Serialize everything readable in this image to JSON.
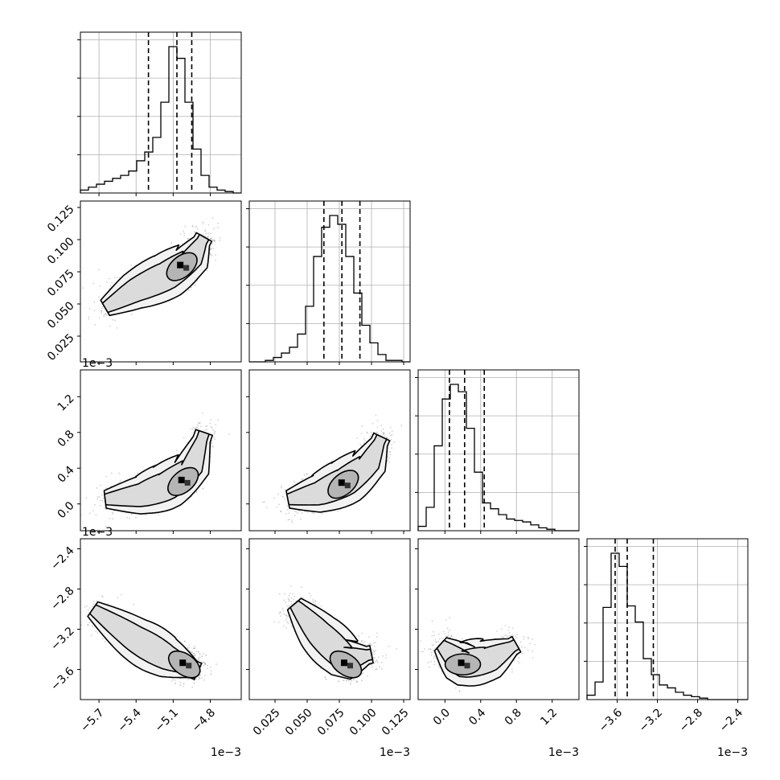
{
  "chart_data": {
    "type": "corner",
    "parameters": 4,
    "axes": [
      {
        "range": [
          -5.85,
          -4.55
        ],
        "ticks": [
          -5.7,
          -5.4,
          -5.1,
          -4.8
        ],
        "tick_labels": [
          "−5.7",
          "−5.4",
          "−5.1",
          "−4.8"
        ],
        "scale_label": "1e−3"
      },
      {
        "range": [
          0.005,
          0.13
        ],
        "ticks": [
          0.025,
          0.05,
          0.075,
          0.1,
          0.125
        ],
        "tick_labels": [
          "0.025",
          "0.050",
          "0.075",
          "0.100",
          "0.125"
        ],
        "scale_label": "1e−3"
      },
      {
        "range": [
          -0.3,
          1.5
        ],
        "ticks": [
          0.0,
          0.4,
          0.8,
          1.2
        ],
        "tick_labels": [
          "0.0",
          "0.4",
          "0.8",
          "1.2"
        ],
        "scale_label": "1e−3"
      },
      {
        "range": [
          -3.9,
          -2.3
        ],
        "ticks": [
          -3.6,
          -3.2,
          -2.8,
          -2.4
        ],
        "tick_labels": [
          "−3.6",
          "−3.2",
          "−2.8",
          "−2.4"
        ],
        "scale_label": "1e−3"
      }
    ],
    "histograms": [
      {
        "quantiles": [
          -5.3,
          -5.07,
          -4.95
        ],
        "edges_start": -5.85,
        "bin_width": 0.065,
        "counts": [
          2,
          4,
          6,
          8,
          10,
          12,
          15,
          22,
          28,
          38,
          62,
          100,
          92,
          62,
          30,
          12,
          4,
          2,
          1,
          0
        ]
      },
      {
        "quantiles": [
          0.063,
          0.077,
          0.091
        ],
        "edges_start": 0.005,
        "bin_width": 0.00625,
        "counts": [
          0,
          0,
          1,
          3,
          6,
          10,
          19,
          38,
          72,
          92,
          100,
          94,
          72,
          47,
          25,
          13,
          5,
          1,
          1,
          0
        ]
      },
      {
        "quantiles": [
          0.05,
          0.22,
          0.44
        ],
        "edges_start": -0.3,
        "bin_width": 0.09,
        "counts": [
          3,
          16,
          58,
          90,
          100,
          95,
          70,
          40,
          19,
          15,
          11,
          8,
          7,
          6,
          4,
          2,
          1,
          0,
          0,
          0
        ]
      },
      {
        "quantiles": [
          -3.62,
          -3.5,
          -3.24
        ],
        "edges_start": -3.9,
        "bin_width": 0.08,
        "counts": [
          3,
          12,
          63,
          100,
          91,
          64,
          53,
          28,
          17,
          10,
          8,
          5,
          3,
          2,
          1,
          0,
          0,
          0,
          0,
          0
        ]
      }
    ],
    "pair_densities": [
      {
        "x": 0,
        "y": 1,
        "mode": [
          -5.03,
          0.079
        ],
        "ridge": [
          [
            -5.65,
            0.047
          ],
          [
            -5.4,
            0.061
          ],
          [
            -5.15,
            0.072
          ],
          [
            -4.95,
            0.085
          ],
          [
            -4.85,
            0.102
          ]
        ]
      },
      {
        "x": 0,
        "y": 2,
        "mode": [
          -5.02,
          0.25
        ],
        "ridge": [
          [
            -5.65,
            0.05
          ],
          [
            -5.35,
            0.1
          ],
          [
            -5.15,
            0.2
          ],
          [
            -4.95,
            0.4
          ],
          [
            -4.85,
            0.8
          ]
        ]
      },
      {
        "x": 1,
        "y": 2,
        "mode": [
          0.078,
          0.22
        ],
        "ridge": [
          [
            0.035,
            0.05
          ],
          [
            0.06,
            0.12
          ],
          [
            0.08,
            0.25
          ],
          [
            0.098,
            0.45
          ],
          [
            0.108,
            0.75
          ]
        ]
      },
      {
        "x": 0,
        "y": 3,
        "mode": [
          -5.01,
          -3.55
        ],
        "ridge": [
          [
            -5.75,
            -3.0
          ],
          [
            -5.4,
            -3.3
          ],
          [
            -5.15,
            -3.48
          ],
          [
            -4.9,
            -3.62
          ]
        ]
      },
      {
        "x": 1,
        "y": 3,
        "mode": [
          0.08,
          -3.55
        ],
        "ridge": [
          [
            0.04,
            -2.95
          ],
          [
            0.06,
            -3.25
          ],
          [
            0.08,
            -3.5
          ],
          [
            0.1,
            -3.45
          ]
        ]
      },
      {
        "x": 2,
        "y": 3,
        "mode": [
          0.2,
          -3.55
        ],
        "ridge": [
          [
            -0.05,
            -3.35
          ],
          [
            0.2,
            -3.55
          ],
          [
            0.5,
            -3.5
          ],
          [
            0.8,
            -3.35
          ]
        ]
      }
    ]
  }
}
